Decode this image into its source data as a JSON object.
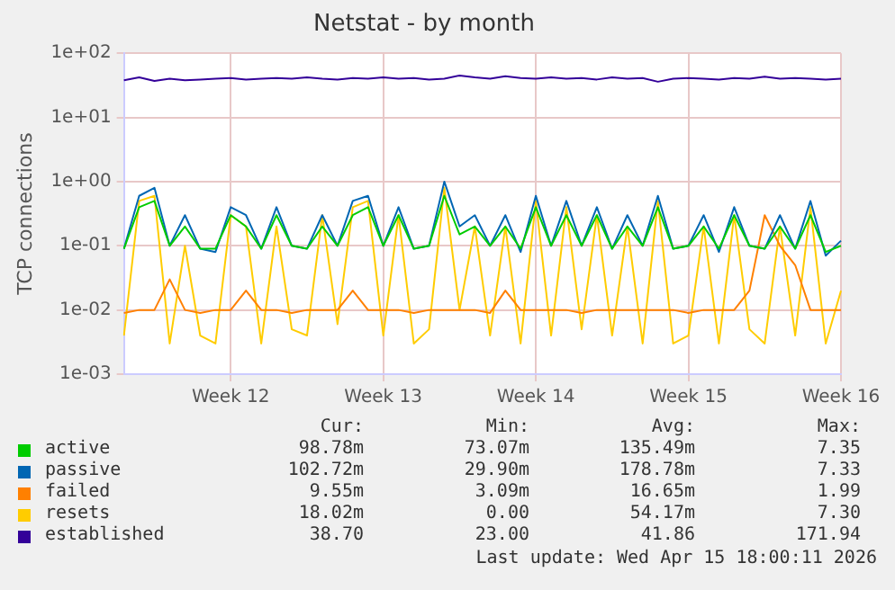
{
  "chart_data": {
    "type": "line",
    "title": "Netstat - by month",
    "ylabel": "TCP connections",
    "log": "y",
    "grid": true,
    "legend": "bottom",
    "marker": "none",
    "line_style": "solid",
    "categories": [
      null,
      null,
      null,
      null,
      null,
      null,
      null,
      "Week 12",
      null,
      null,
      null,
      null,
      null,
      null,
      null,
      null,
      null,
      "Week 13",
      null,
      null,
      null,
      null,
      null,
      null,
      null,
      null,
      null,
      "Week 14",
      null,
      null,
      null,
      null,
      null,
      null,
      null,
      null,
      null,
      "Week 15",
      null,
      null,
      null,
      null,
      null,
      null,
      null,
      null,
      null,
      "Week 16"
    ],
    "ylim": [
      0.001,
      100
    ],
    "yticks": [
      {
        "value": 0.001,
        "label": "1e-03"
      },
      {
        "value": 0.01,
        "label": "1e-02"
      },
      {
        "value": 0.1,
        "label": "1e-01"
      },
      {
        "value": 1,
        "label": "1e+00"
      },
      {
        "value": 10,
        "label": "1e+01"
      },
      {
        "value": 100,
        "label": "1e+02"
      }
    ],
    "series": [
      {
        "name": "active",
        "color": "#00cc00",
        "values": [
          0.09,
          0.4,
          0.5,
          0.1,
          0.2,
          0.09,
          0.09,
          0.3,
          0.2,
          0.09,
          0.3,
          0.1,
          0.09,
          0.2,
          0.1,
          0.3,
          0.4,
          0.1,
          0.3,
          0.09,
          0.1,
          0.6,
          0.15,
          0.2,
          0.1,
          0.2,
          0.09,
          0.4,
          0.1,
          0.3,
          0.1,
          0.3,
          0.09,
          0.2,
          0.1,
          0.4,
          0.09,
          0.1,
          0.2,
          0.09,
          0.3,
          0.1,
          0.09,
          0.2,
          0.09,
          0.3,
          0.08,
          0.1
        ]
      },
      {
        "name": "passive",
        "color": "#0066b3",
        "values": [
          0.09,
          0.6,
          0.8,
          0.1,
          0.3,
          0.09,
          0.08,
          0.4,
          0.3,
          0.09,
          0.4,
          0.1,
          0.09,
          0.3,
          0.1,
          0.5,
          0.6,
          0.1,
          0.4,
          0.09,
          0.1,
          1.0,
          0.2,
          0.3,
          0.1,
          0.3,
          0.08,
          0.6,
          0.1,
          0.5,
          0.1,
          0.4,
          0.09,
          0.3,
          0.1,
          0.6,
          0.09,
          0.1,
          0.3,
          0.08,
          0.4,
          0.1,
          0.09,
          0.3,
          0.09,
          0.5,
          0.07,
          0.12
        ]
      },
      {
        "name": "failed",
        "color": "#ff8000",
        "values": [
          0.009,
          0.01,
          0.01,
          0.03,
          0.01,
          0.009,
          0.01,
          0.01,
          0.02,
          0.01,
          0.01,
          0.009,
          0.01,
          0.01,
          0.01,
          0.02,
          0.01,
          0.01,
          0.01,
          0.009,
          0.01,
          0.01,
          0.01,
          0.01,
          0.009,
          0.02,
          0.01,
          0.01,
          0.01,
          0.01,
          0.009,
          0.01,
          0.01,
          0.01,
          0.01,
          0.01,
          0.01,
          0.009,
          0.01,
          0.01,
          0.01,
          0.02,
          0.3,
          0.1,
          0.05,
          0.01,
          0.01,
          0.01
        ]
      },
      {
        "name": "resets",
        "color": "#ffcc00",
        "values": [
          0.004,
          0.5,
          0.6,
          0.003,
          0.1,
          0.004,
          0.003,
          0.3,
          0.2,
          0.003,
          0.2,
          0.005,
          0.004,
          0.3,
          0.006,
          0.4,
          0.5,
          0.004,
          0.3,
          0.003,
          0.005,
          0.8,
          0.01,
          0.2,
          0.004,
          0.2,
          0.003,
          0.5,
          0.004,
          0.4,
          0.005,
          0.3,
          0.004,
          0.2,
          0.003,
          0.5,
          0.003,
          0.004,
          0.2,
          0.003,
          0.3,
          0.005,
          0.003,
          0.2,
          0.004,
          0.4,
          0.003,
          0.02
        ]
      },
      {
        "name": "established",
        "color": "#330099",
        "values": [
          38,
          42,
          37,
          40,
          38,
          39,
          40,
          41,
          39,
          40,
          41,
          40,
          42,
          40,
          39,
          41,
          40,
          42,
          40,
          41,
          39,
          40,
          45,
          42,
          40,
          44,
          41,
          40,
          42,
          40,
          41,
          39,
          42,
          40,
          41,
          36,
          40,
          41,
          40,
          39,
          41,
          40,
          43,
          40,
          41,
          40,
          39,
          40
        ]
      }
    ],
    "annotations": [
      "Cur:",
      "Min:",
      "Avg:",
      "Max:",
      "98.78m",
      "73.07m",
      "135.49m",
      "7.35",
      "102.72m",
      "29.90m",
      "178.78m",
      "7.33",
      "9.55m",
      "3.09m",
      "16.65m",
      "1.99",
      "18.02m",
      "0.00",
      "54.17m",
      "7.30",
      "38.70",
      "23.00",
      "41.86",
      "171.94",
      "Last update: Wed Apr 15 18:00:11 2026"
    ]
  }
}
